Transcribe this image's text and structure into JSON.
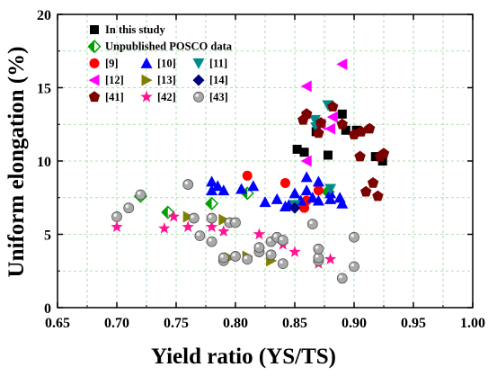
{
  "chart_data": {
    "type": "scatter",
    "xlabel": "Yield ratio (YS/TS)",
    "ylabel": "Uniform elongation (%)",
    "xlim": [
      0.65,
      1.0
    ],
    "ylim": [
      0,
      20
    ],
    "x_ticks": [
      "0.65",
      "0.70",
      "0.75",
      "0.80",
      "0.85",
      "0.90",
      "0.95",
      "1.00"
    ],
    "y_ticks": [
      "0",
      "5",
      "10",
      "15",
      "20"
    ],
    "grid": true,
    "legend_placement": "top-left",
    "series": [
      {
        "name": "In this study",
        "marker": "square",
        "color": "#000000",
        "x": [
          0.852,
          0.858,
          0.868,
          0.878,
          0.89,
          0.893,
          0.902,
          0.918,
          0.924
        ],
        "y": [
          10.8,
          10.6,
          12.0,
          10.4,
          13.2,
          12.1,
          12.1,
          10.3,
          10.0
        ]
      },
      {
        "name": "Unpublished POSCO data",
        "marker": "diamond-half",
        "color": "#00a000",
        "x": [
          0.72,
          0.743,
          0.78,
          0.81,
          0.85,
          0.878
        ],
        "y": [
          7.6,
          6.5,
          7.1,
          7.8,
          6.9,
          7.9
        ]
      },
      {
        "name": "[9]",
        "marker": "circle",
        "color": "#ff0000",
        "x": [
          0.81,
          0.842,
          0.858,
          0.86,
          0.87
        ],
        "y": [
          9.0,
          8.5,
          6.8,
          7.3,
          8.0
        ]
      },
      {
        "name": "[10]",
        "marker": "triangle-up",
        "color": "#0000ff",
        "x": [
          0.78,
          0.78,
          0.785,
          0.79,
          0.805,
          0.815,
          0.825,
          0.835,
          0.842,
          0.845,
          0.85,
          0.855,
          0.86,
          0.86,
          0.865,
          0.87,
          0.87,
          0.88,
          0.88,
          0.888,
          0.89
        ],
        "y": [
          8.6,
          8.0,
          8.3,
          8.0,
          8.1,
          8.3,
          7.2,
          7.4,
          6.9,
          7.0,
          7.8,
          7.3,
          8.0,
          8.9,
          7.5,
          8.6,
          7.3,
          7.8,
          7.4,
          7.5,
          7.1
        ]
      },
      {
        "name": "[11]",
        "marker": "triangle-down",
        "color": "#008b8b",
        "x": [
          0.85,
          0.867,
          0.868,
          0.878,
          0.88
        ],
        "y": [
          7.0,
          12.8,
          12.3,
          13.8,
          8.1
        ]
      },
      {
        "name": "[12]",
        "marker": "triangle-left",
        "color": "#ff00ff",
        "x": [
          0.86,
          0.86,
          0.872,
          0.88,
          0.882,
          0.89
        ],
        "y": [
          15.1,
          10.0,
          12.5,
          12.2,
          13.0,
          16.6
        ]
      },
      {
        "name": "[13]",
        "marker": "triangle-right",
        "color": "#808000",
        "x": [
          0.76,
          0.79,
          0.795,
          0.81,
          0.83
        ],
        "y": [
          6.2,
          6.0,
          3.4,
          3.5,
          3.2
        ]
      },
      {
        "name": "[14]",
        "marker": "diamond",
        "color": "#000080",
        "x": [
          0.85
        ],
        "y": [
          6.8
        ]
      },
      {
        "name": "[41]",
        "marker": "pentagon",
        "color": "#7b0000",
        "x": [
          0.857,
          0.86,
          0.87,
          0.872,
          0.882,
          0.89,
          0.9,
          0.905,
          0.906,
          0.91,
          0.913,
          0.916,
          0.92,
          0.922,
          0.925
        ],
        "y": [
          12.8,
          13.2,
          11.9,
          12.6,
          13.7,
          12.5,
          11.8,
          10.3,
          12.0,
          7.9,
          12.2,
          8.5,
          7.6,
          10.3,
          10.5
        ]
      },
      {
        "name": "[42]",
        "marker": "star",
        "color": "#ff1493",
        "x": [
          0.7,
          0.74,
          0.748,
          0.76,
          0.78,
          0.79,
          0.82,
          0.84,
          0.85,
          0.87,
          0.88
        ],
        "y": [
          5.5,
          5.4,
          6.2,
          5.5,
          5.5,
          5.2,
          5.0,
          4.3,
          3.8,
          3.0,
          3.3
        ]
      },
      {
        "name": "[43]",
        "marker": "circle-gray",
        "color": "#a9a9a9",
        "x": [
          0.7,
          0.71,
          0.72,
          0.76,
          0.765,
          0.77,
          0.78,
          0.78,
          0.79,
          0.79,
          0.795,
          0.8,
          0.8,
          0.81,
          0.82,
          0.82,
          0.83,
          0.83,
          0.835,
          0.84,
          0.84,
          0.865,
          0.87,
          0.87,
          0.87,
          0.89,
          0.9,
          0.9
        ],
        "y": [
          6.2,
          6.8,
          7.7,
          8.4,
          6.1,
          4.9,
          6.1,
          4.5,
          3.2,
          3.4,
          5.8,
          5.8,
          3.5,
          3.3,
          3.8,
          4.1,
          4.5,
          3.6,
          4.8,
          4.6,
          3.0,
          5.7,
          3.2,
          3.4,
          4.0,
          2.0,
          2.8,
          4.8
        ]
      }
    ]
  }
}
